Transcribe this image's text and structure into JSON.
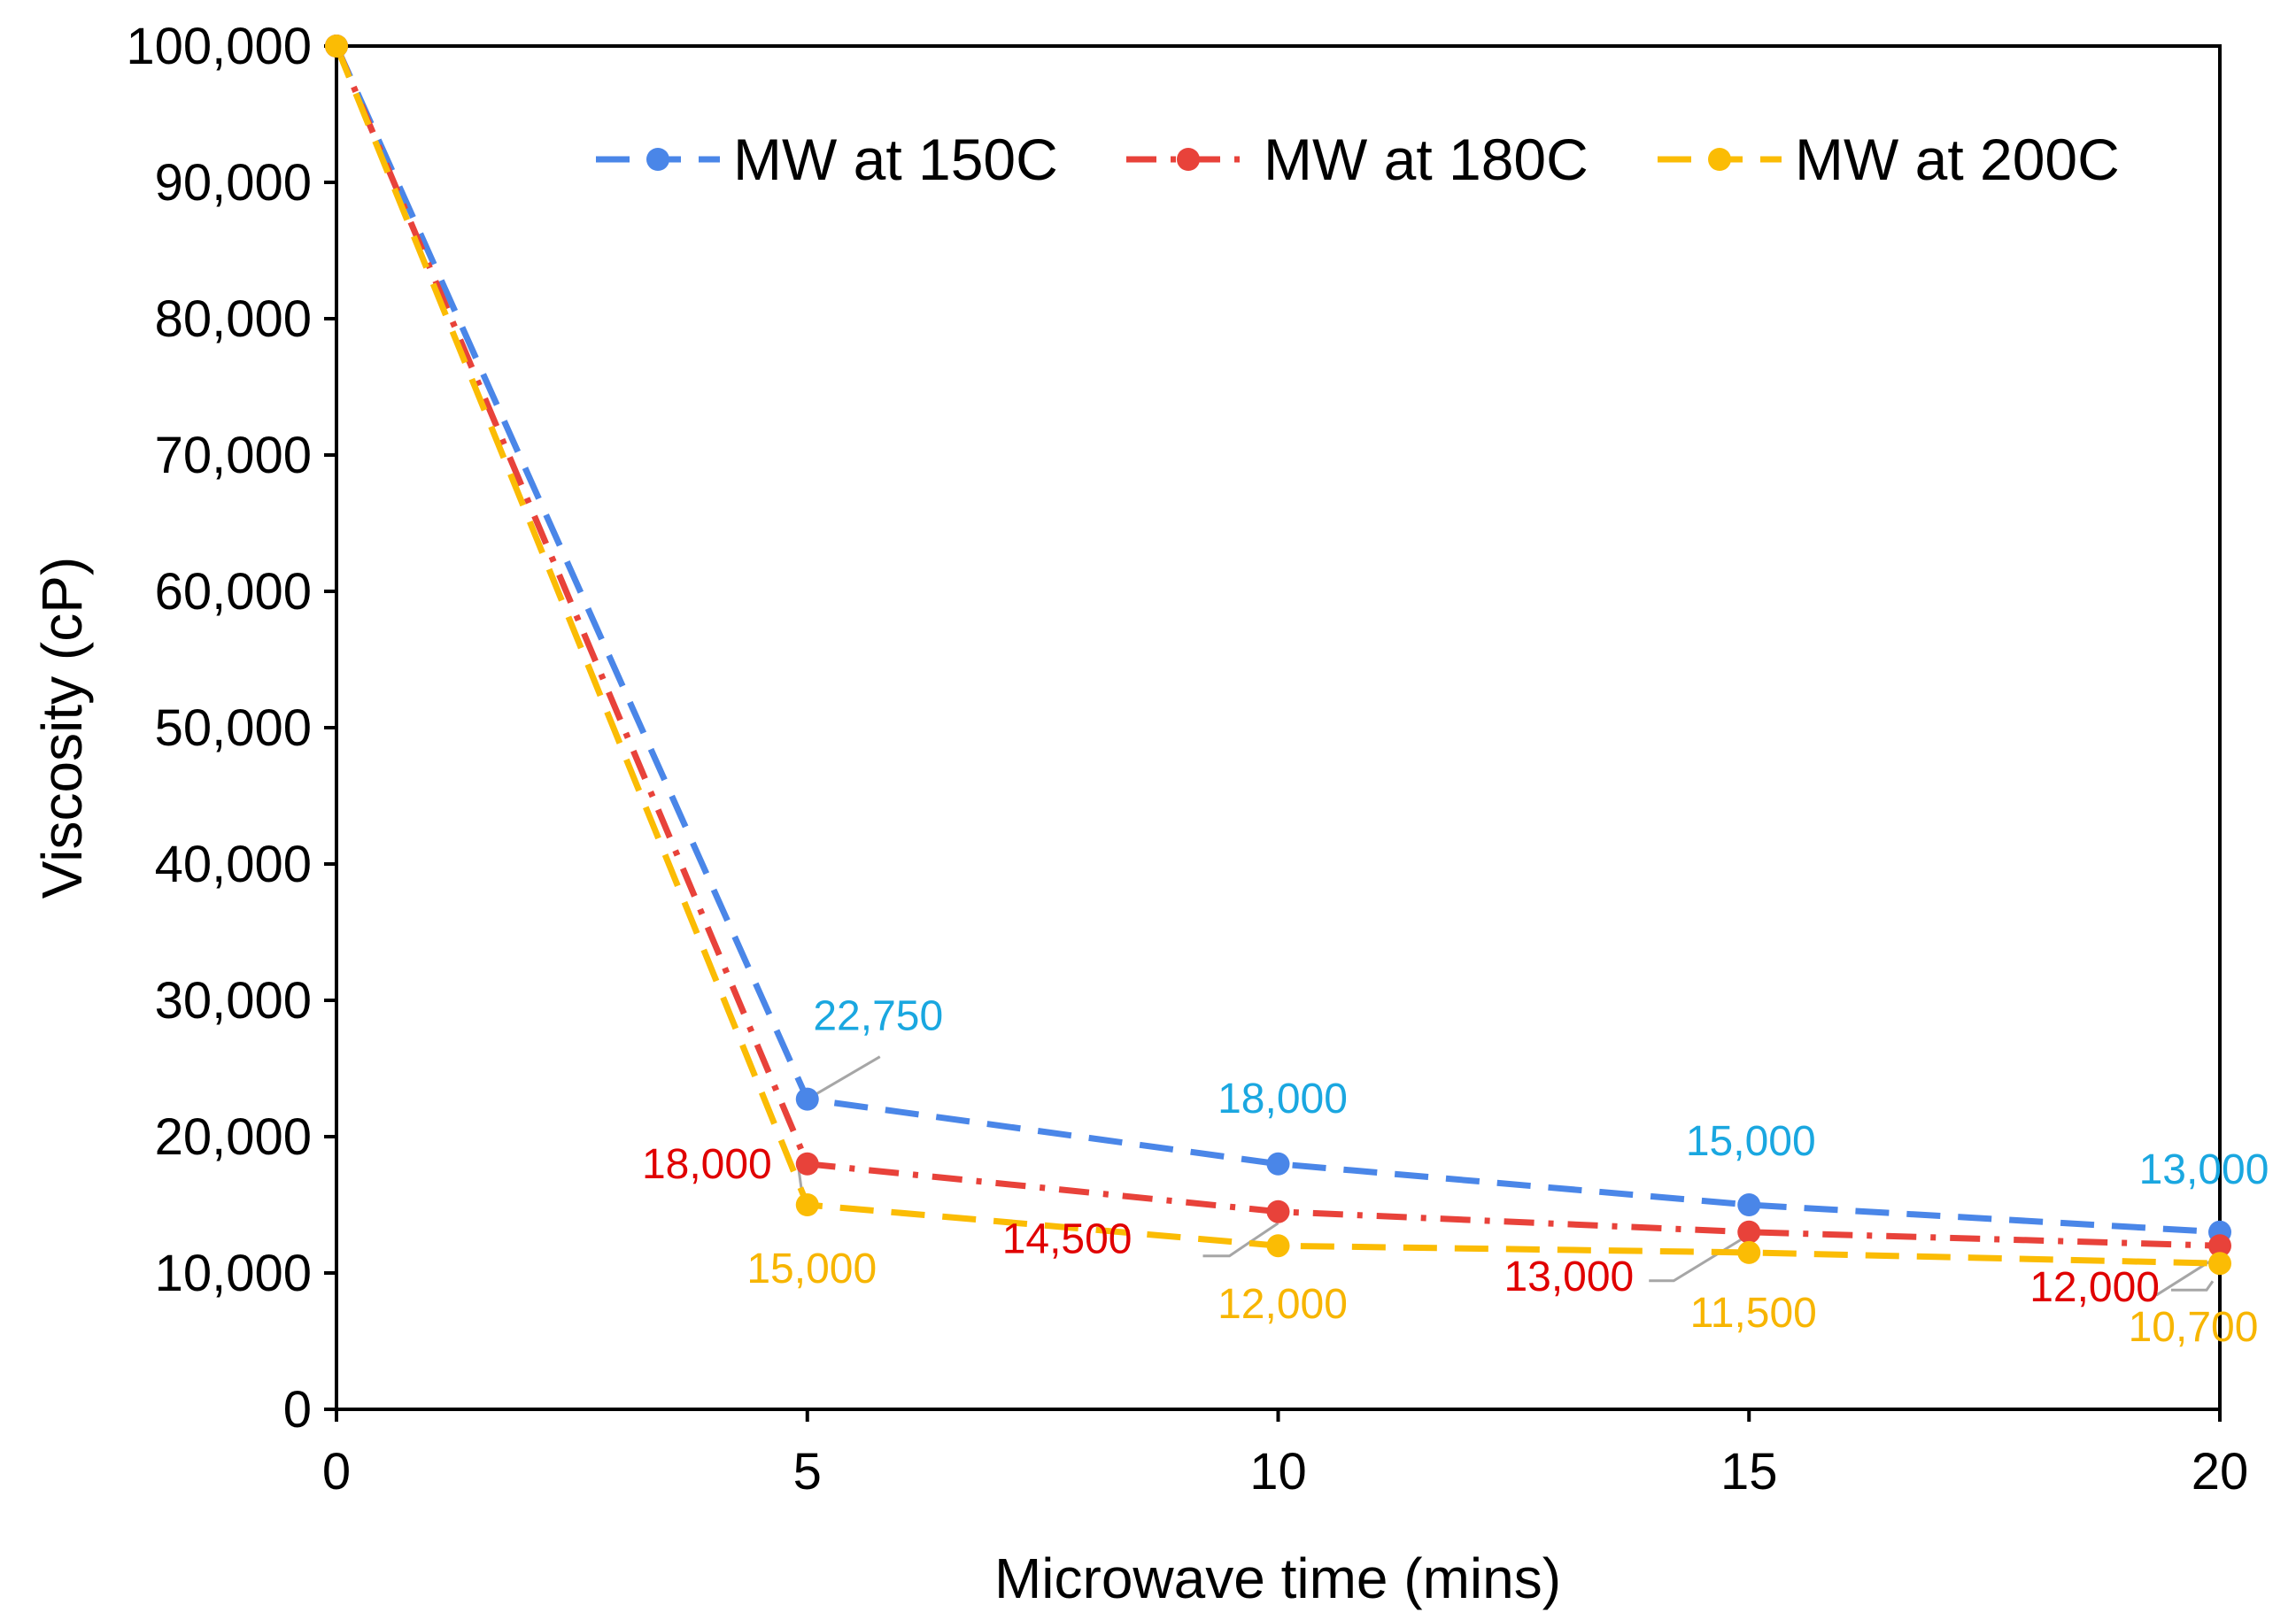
{
  "chart_data": {
    "type": "line",
    "title": "",
    "xlabel": "Microwave time (mins)",
    "ylabel": "Viscosity (cP)",
    "x": [
      0,
      5,
      10,
      15,
      20
    ],
    "xlim": [
      0,
      20
    ],
    "ylim": [
      0,
      100000
    ],
    "xticks": [
      0,
      5,
      10,
      15,
      20
    ],
    "yticks": [
      0,
      10000,
      20000,
      30000,
      40000,
      50000,
      60000,
      70000,
      80000,
      90000,
      100000
    ],
    "xtick_labels": [
      "0",
      "5",
      "10",
      "15",
      "20"
    ],
    "ytick_labels": [
      "0",
      "10,000",
      "20,000",
      "30,000",
      "40,000",
      "50,000",
      "60,000",
      "70,000",
      "80,000",
      "90,000",
      "100,000"
    ],
    "legend_position": "top",
    "grid": false,
    "series": [
      {
        "name": "MW at 150C",
        "color": "#4a86e8",
        "line_style": "dashed",
        "values": [
          100000,
          22750,
          18000,
          15000,
          13000
        ],
        "label_color": "#1aa7e0",
        "data_labels": [
          "",
          "22,750",
          "18,000",
          "15,000",
          "13,000"
        ]
      },
      {
        "name": "MW at 180C",
        "color": "#e8423a",
        "line_style": "dash-dot",
        "values": [
          100000,
          18000,
          14500,
          13000,
          12000
        ],
        "label_color": "#e00000",
        "data_labels": [
          "",
          "18,000",
          "14,500",
          "13,000",
          "12,000"
        ]
      },
      {
        "name": "MW at 200C",
        "color": "#fbbc04",
        "line_style": "dashed",
        "values": [
          100000,
          15000,
          12000,
          11500,
          10700
        ],
        "label_color": "#f7b500",
        "data_labels": [
          "",
          "15,000",
          "12,000",
          "11,500",
          "10,700"
        ]
      }
    ]
  }
}
